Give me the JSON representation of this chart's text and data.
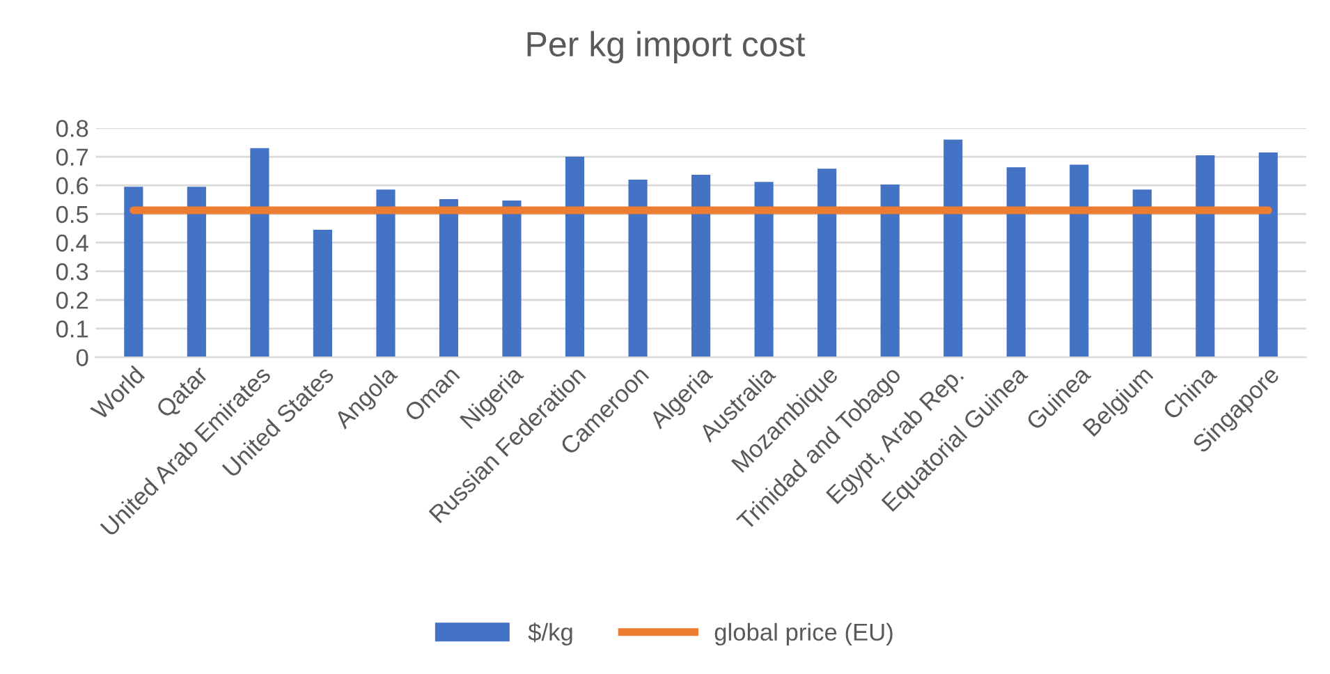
{
  "chart_data": {
    "type": "bar",
    "title": "Per kg import cost",
    "categories": [
      "World",
      "Qatar",
      "United Arab Emirates",
      "United States",
      "Angola",
      "Oman",
      "Nigeria",
      "Russian Federation",
      "Cameroon",
      "Algeria",
      "Australia",
      "Mozambique",
      "Trinidad and Tobago",
      "Egypt, Arab Rep.",
      "Equatorial Guinea",
      "Guinea",
      "Belgium",
      "China",
      "Singapore"
    ],
    "series": [
      {
        "name": "$/kg",
        "color": "#4472c4",
        "values": [
          0.595,
          0.595,
          0.73,
          0.445,
          0.585,
          0.552,
          0.547,
          0.7,
          0.62,
          0.637,
          0.612,
          0.658,
          0.603,
          0.76,
          0.663,
          0.672,
          0.585,
          0.705,
          0.715
        ]
      },
      {
        "name": "global price (EU)",
        "type": "line",
        "color": "#ed7d31",
        "values": [
          0.513,
          0.513,
          0.513,
          0.513,
          0.513,
          0.513,
          0.513,
          0.513,
          0.513,
          0.513,
          0.513,
          0.513,
          0.513,
          0.513,
          0.513,
          0.513,
          0.513,
          0.513,
          0.513
        ]
      }
    ],
    "ylim": [
      0,
      0.8
    ],
    "yticks": [
      0,
      {
        "value": 0.1,
        "label": "0.1"
      },
      {
        "value": 0.2,
        "label": "0.2"
      },
      {
        "value": 0.3,
        "label": "0.3"
      },
      {
        "value": 0.4,
        "label": "0.4"
      },
      {
        "value": 0.5,
        "label": "0.5"
      },
      {
        "value": 0.6,
        "label": "0.6"
      },
      {
        "value": 0.7,
        "label": "0.7"
      },
      {
        "value": 0.8,
        "label": "0.8"
      }
    ],
    "grid": "y",
    "legend": "bottom",
    "marker": "none",
    "line_style": "solid"
  }
}
